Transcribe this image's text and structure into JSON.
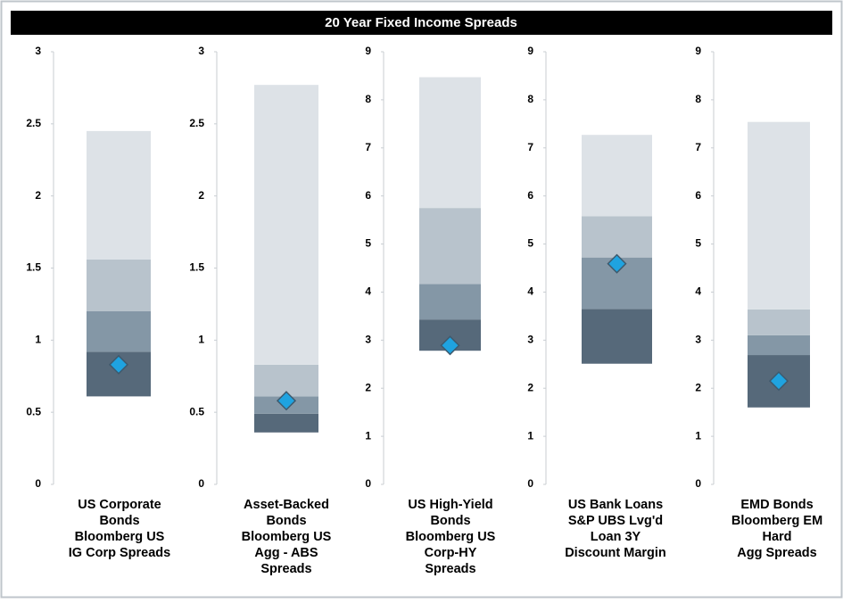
{
  "title": "20 Year Fixed Income Spreads",
  "chart_data": [
    {
      "type": "range",
      "label": [
        "US Corporate",
        "Bonds",
        "Bloomberg US",
        "IG Corp Spreads"
      ],
      "ylim": [
        0,
        3
      ],
      "yticks": [
        0,
        0.5,
        1,
        1.5,
        2,
        2.5,
        3
      ],
      "values": [
        0.61,
        0.92,
        1.2,
        1.56,
        2.45
      ],
      "current": 0.83,
      "colors": [
        "#56697a",
        "#8497a6",
        "#b8c3cc",
        "#dde2e7"
      ],
      "marker_color": "#1fa3e0"
    },
    {
      "type": "range",
      "label": [
        "Asset-Backed",
        "Bonds",
        "Bloomberg US",
        "Agg - ABS",
        "Spreads"
      ],
      "ylim": [
        0,
        3
      ],
      "yticks": [
        0,
        0.5,
        1,
        1.5,
        2,
        2.5,
        3
      ],
      "values": [
        0.36,
        0.49,
        0.61,
        0.83,
        2.77
      ],
      "current": 0.58,
      "colors": [
        "#56697a",
        "#8497a6",
        "#b8c3cc",
        "#dde2e7"
      ],
      "marker_color": "#1fa3e0"
    },
    {
      "type": "range",
      "label": [
        "US High-Yield",
        "Bonds",
        "Bloomberg US",
        "Corp-HY",
        "Spreads"
      ],
      "ylim": [
        0,
        9
      ],
      "yticks": [
        0,
        1,
        2,
        3,
        4,
        5,
        6,
        7,
        8,
        9
      ],
      "values": [
        2.78,
        3.43,
        4.17,
        5.75,
        8.47
      ],
      "current": 2.89,
      "colors": [
        "#56697a",
        "#8497a6",
        "#b8c3cc",
        "#dde2e7"
      ],
      "marker_color": "#1fa3e0"
    },
    {
      "type": "range",
      "label": [
        "US Bank Loans",
        "S&P UBS  Lvg'd",
        "Loan 3Y",
        "Discount Margin"
      ],
      "ylim": [
        0,
        9
      ],
      "yticks": [
        0,
        1,
        2,
        3,
        4,
        5,
        6,
        7,
        8,
        9
      ],
      "values": [
        2.51,
        3.65,
        4.72,
        5.58,
        7.27
      ],
      "current": 4.59,
      "colors": [
        "#56697a",
        "#8497a6",
        "#b8c3cc",
        "#dde2e7"
      ],
      "marker_color": "#1fa3e0"
    },
    {
      "type": "range",
      "label": [
        "EMD Bonds",
        "Bloomberg EM",
        "Hard",
        "Agg Spreads"
      ],
      "ylim": [
        0,
        9
      ],
      "yticks": [
        0,
        1,
        2,
        3,
        4,
        5,
        6,
        7,
        8,
        9
      ],
      "values": [
        1.6,
        2.69,
        3.1,
        3.64,
        7.54
      ],
      "current": 2.15,
      "colors": [
        "#56697a",
        "#8497a6",
        "#b8c3cc",
        "#dde2e7"
      ],
      "marker_color": "#1fa3e0"
    }
  ]
}
